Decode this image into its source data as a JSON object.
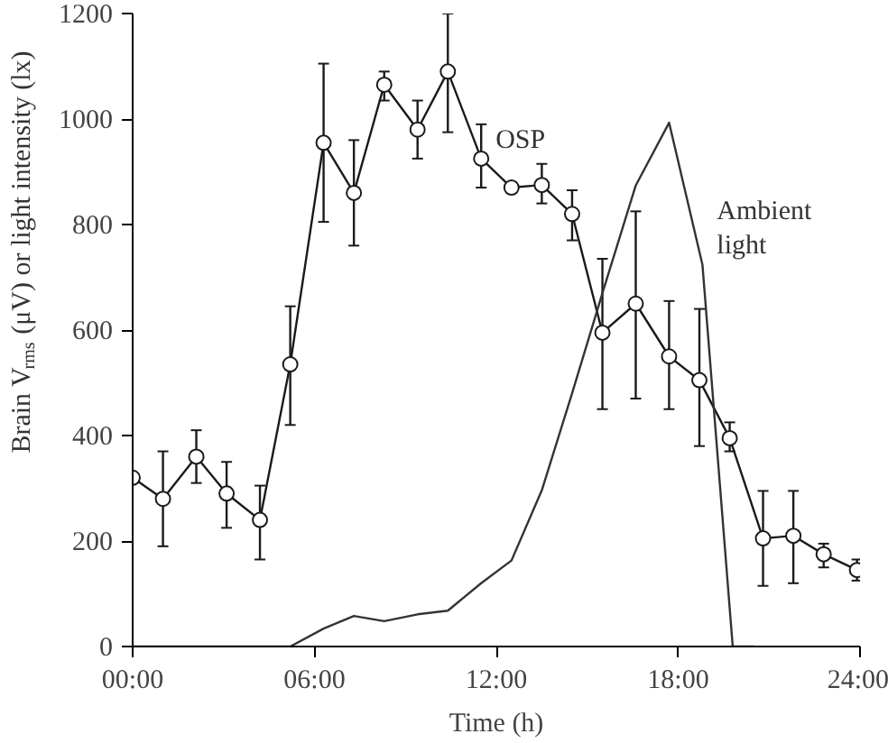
{
  "chart_data": {
    "type": "line",
    "xlabel": "Time (h)",
    "ylabel": "Brain V$_{rms}$ (μV) or light intensity (lx)",
    "xlim": [
      0,
      24
    ],
    "ylim": [
      0,
      1200
    ],
    "xticks": [
      {
        "value": 0,
        "label": "00:00"
      },
      {
        "value": 6,
        "label": "06:00"
      },
      {
        "value": 12,
        "label": "12:00"
      },
      {
        "value": 18,
        "label": "18:00"
      },
      {
        "value": 24,
        "label": "24:00"
      }
    ],
    "yticks": [
      0,
      200,
      400,
      600,
      800,
      1000,
      1200
    ],
    "grid": false,
    "series": [
      {
        "name": "OSP",
        "color": "#1a1a1a",
        "marker": "circle",
        "x": [
          0,
          1,
          2.1,
          3.1,
          4.2,
          5.2,
          6.3,
          7.3,
          8.3,
          9.4,
          10.4,
          11.5,
          12.5,
          13.5,
          14.5,
          15.5,
          16.6,
          17.7,
          18.7,
          19.7,
          20.8,
          21.8,
          22.8,
          23.9
        ],
        "values": [
          320,
          280,
          360,
          290,
          240,
          535,
          955,
          860,
          1065,
          980,
          1090,
          925,
          870,
          875,
          820,
          595,
          650,
          550,
          505,
          395,
          205,
          210,
          175,
          145
        ],
        "errors": [
          null,
          [
            190,
            370
          ],
          [
            310,
            410
          ],
          [
            225,
            350
          ],
          [
            165,
            305
          ],
          [
            420,
            645
          ],
          [
            805,
            1105
          ],
          [
            760,
            960
          ],
          [
            1035,
            1090
          ],
          [
            925,
            1035
          ],
          [
            975,
            1200
          ],
          [
            870,
            990
          ],
          [
            860,
            880
          ],
          [
            840,
            915
          ],
          [
            770,
            865
          ],
          [
            450,
            735
          ],
          [
            470,
            825
          ],
          [
            450,
            655
          ],
          [
            380,
            640
          ],
          [
            370,
            425
          ],
          [
            115,
            295
          ],
          [
            120,
            295
          ],
          [
            150,
            195
          ],
          [
            125,
            165
          ]
        ]
      },
      {
        "name": "Ambient\nlight",
        "color": "#333333",
        "marker": "none",
        "x": [
          0,
          5.2,
          6.3,
          7.3,
          8.3,
          9.4,
          10.4,
          11.5,
          12.5,
          13.5,
          14.5,
          15.5,
          16.6,
          17.7,
          18.8,
          19.8,
          20.5
        ],
        "values": [
          0,
          0,
          34,
          58,
          48,
          61,
          68,
          120,
          163,
          296,
          480,
          670,
          874,
          993,
          724,
          0,
          0
        ]
      }
    ]
  }
}
